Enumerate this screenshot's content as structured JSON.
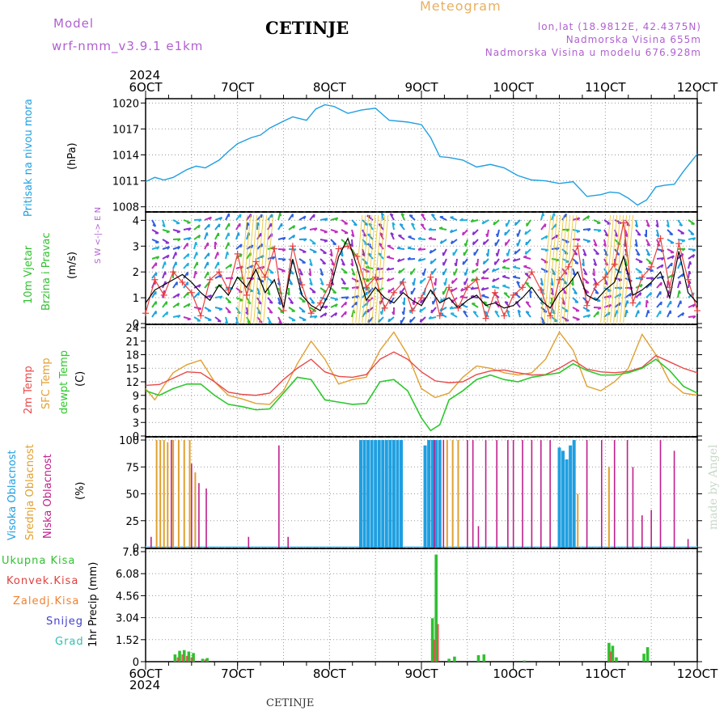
{
  "header": {
    "model_label": "Model",
    "model_name": "wrf-nmm_v3.9.1 e1km",
    "station": "CETINJE",
    "meteogram": "Meteogram",
    "lonlat": "lon,lat (18.9812E, 42.4375N)",
    "altitude": "Nadmorska Visina 655m",
    "model_altitude": "Nadmorska Visina u modelu 676.928m",
    "year": "2024",
    "footer_station": "CETINJE",
    "credit": "made by Angel"
  },
  "colors": {
    "pressure": "#1f9fe0",
    "wind_speed": "#000000",
    "wind_gust": "#e84040",
    "temp2m": "#e84a4a",
    "sfc_temp": "#e0a030",
    "dewpoint": "#2ec82e",
    "high_cloud": "#1f9fe0",
    "mid_cloud": "#e0a030",
    "low_cloud": "#c0208c",
    "total_precip": "#30c030",
    "conv_precip": "#e04040",
    "frozen_precip": "#f08030",
    "snow": "#4040d0",
    "graupel": "#30c0b0",
    "model_text": "#b060d0",
    "meteogram_text": "#e8b060"
  },
  "chart_data": [
    {
      "type": "line",
      "panel": "pressure",
      "title": "Pritisak na nivou mora",
      "ylabel": "(hPa)",
      "ylim": [
        1007.5,
        1020.5
      ],
      "yticks": [
        1008,
        1011,
        1014,
        1017,
        1020
      ],
      "x_ticks": [
        "6OCT",
        "7OCT",
        "8OCT",
        "9OCT",
        "10OCT",
        "11OCT",
        "12OCT"
      ],
      "x_range_days": [
        0,
        6
      ],
      "grid": true,
      "series": [
        {
          "name": "Pritisak na nivou mora",
          "x": [
            0,
            0.1,
            0.2,
            0.3,
            0.45,
            0.55,
            0.65,
            0.8,
            0.9,
            1.0,
            1.15,
            1.25,
            1.35,
            1.5,
            1.6,
            1.75,
            1.85,
            1.95,
            2.05,
            2.2,
            2.35,
            2.5,
            2.65,
            2.85,
            3.0,
            3.1,
            3.2,
            3.3,
            3.45,
            3.6,
            3.75,
            3.9,
            4.05,
            4.2,
            4.35,
            4.5,
            4.65,
            4.8,
            4.95,
            5.05,
            5.15,
            5.25,
            5.35,
            5.45,
            5.55,
            5.65,
            5.75,
            5.85,
            6.0
          ],
          "y": [
            1010.9,
            1011.4,
            1011.1,
            1011.4,
            1012.3,
            1012.7,
            1012.5,
            1013.4,
            1014.4,
            1015.3,
            1016.0,
            1016.3,
            1017.1,
            1017.9,
            1018.4,
            1018.0,
            1019.3,
            1019.8,
            1019.6,
            1018.8,
            1019.2,
            1019.4,
            1018.0,
            1017.8,
            1017.5,
            1016.0,
            1013.8,
            1013.7,
            1013.4,
            1012.6,
            1012.9,
            1012.5,
            1011.6,
            1011.1,
            1011.0,
            1010.7,
            1010.9,
            1009.2,
            1009.4,
            1009.7,
            1009.6,
            1009.0,
            1008.2,
            1008.8,
            1010.3,
            1010.5,
            1010.6,
            1012.1,
            1014.1
          ]
        }
      ]
    },
    {
      "type": "line",
      "panel": "wind",
      "title": "10m Vjetar",
      "subtitle": "Brzina i Pravac",
      "ylabel": "(m/s)",
      "compass": "S W <-|-> E N",
      "ylim": [
        0,
        4.2
      ],
      "yticks": [
        0,
        1,
        2,
        3,
        4
      ],
      "grid": true,
      "series": [
        {
          "name": "Brzina",
          "x": [
            0,
            0.1,
            0.2,
            0.3,
            0.4,
            0.5,
            0.6,
            0.7,
            0.8,
            0.9,
            1.0,
            1.1,
            1.2,
            1.3,
            1.4,
            1.5,
            1.6,
            1.7,
            1.8,
            1.9,
            2.0,
            2.1,
            2.2,
            2.3,
            2.4,
            2.5,
            2.6,
            2.7,
            2.8,
            2.9,
            3.0,
            3.1,
            3.2,
            3.3,
            3.4,
            3.5,
            3.6,
            3.7,
            3.8,
            3.9,
            4.0,
            4.1,
            4.2,
            4.3,
            4.4,
            4.5,
            4.6,
            4.7,
            4.8,
            4.9,
            5.0,
            5.1,
            5.2,
            5.3,
            5.4,
            5.5,
            5.6,
            5.7,
            5.8,
            5.9,
            6.0
          ],
          "y": [
            0.8,
            1.3,
            1.5,
            1.7,
            1.9,
            1.6,
            1.2,
            0.9,
            1.5,
            1.1,
            1.8,
            1.4,
            2.1,
            1.2,
            1.7,
            0.6,
            2.5,
            1.1,
            0.7,
            0.5,
            1.2,
            2.6,
            3.3,
            2.2,
            0.9,
            1.4,
            1.0,
            0.8,
            1.2,
            0.9,
            0.7,
            1.3,
            0.8,
            1.0,
            0.6,
            0.9,
            1.1,
            0.7,
            0.8,
            0.6,
            0.7,
            1.0,
            1.4,
            0.9,
            0.6,
            1.2,
            1.5,
            2.0,
            1.1,
            0.9,
            1.3,
            1.6,
            2.6,
            1.1,
            1.3,
            1.6,
            2.0,
            1.0,
            2.8,
            1.2,
            0.8
          ]
        },
        {
          "name": "Udar",
          "x": [
            0,
            0.1,
            0.2,
            0.3,
            0.4,
            0.5,
            0.6,
            0.7,
            0.8,
            0.9,
            1.0,
            1.1,
            1.2,
            1.3,
            1.4,
            1.5,
            1.6,
            1.7,
            1.8,
            1.9,
            2.0,
            2.1,
            2.2,
            2.3,
            2.4,
            2.5,
            2.6,
            2.7,
            2.8,
            2.9,
            3.0,
            3.1,
            3.2,
            3.3,
            3.4,
            3.5,
            3.6,
            3.7,
            3.8,
            3.9,
            4.0,
            4.1,
            4.2,
            4.3,
            4.4,
            4.5,
            4.6,
            4.7,
            4.8,
            4.9,
            5.0,
            5.1,
            5.2,
            5.3,
            5.4,
            5.5,
            5.6,
            5.7,
            5.8,
            5.9,
            6.0
          ],
          "y": [
            0.4,
            1.7,
            1.1,
            2.0,
            1.6,
            1.2,
            0.3,
            1.7,
            2.0,
            1.3,
            2.7,
            1.1,
            2.4,
            1.8,
            2.9,
            0.5,
            3.0,
            1.5,
            0.4,
            0.8,
            1.5,
            2.9,
            3.0,
            2.6,
            1.4,
            1.8,
            0.6,
            1.2,
            1.6,
            0.5,
            1.0,
            1.8,
            0.3,
            1.4,
            0.6,
            1.4,
            1.7,
            0.2,
            1.2,
            0.3,
            1.1,
            1.4,
            2.0,
            1.3,
            0.3,
            1.7,
            2.2,
            3.0,
            0.7,
            1.5,
            1.8,
            2.3,
            3.9,
            0.8,
            1.8,
            2.2,
            3.3,
            1.4,
            3.1,
            1.7,
            0.5
          ]
        }
      ]
    },
    {
      "type": "line",
      "panel": "temperature",
      "title": "2m Temp",
      "subtitle": "SFC Temp",
      "subtitle2": "dewpt Temp",
      "ylabel": "(C)",
      "ylim": [
        0,
        24
      ],
      "yticks": [
        0,
        3,
        6,
        9,
        12,
        15,
        18,
        21,
        24
      ],
      "grid": true,
      "series": [
        {
          "name": "2m Temp",
          "x": [
            0,
            0.15,
            0.3,
            0.45,
            0.6,
            0.75,
            0.9,
            1.05,
            1.2,
            1.35,
            1.5,
            1.65,
            1.8,
            1.95,
            2.1,
            2.25,
            2.4,
            2.55,
            2.7,
            2.85,
            3.0,
            3.15,
            3.3,
            3.45,
            3.6,
            3.75,
            3.9,
            4.05,
            4.2,
            4.35,
            4.5,
            4.65,
            4.8,
            4.95,
            5.1,
            5.25,
            5.4,
            5.55,
            5.7,
            5.85,
            6.0
          ],
          "y": [
            11.2,
            11.4,
            12.8,
            14.2,
            14.0,
            12.0,
            9.7,
            9.2,
            9.0,
            9.5,
            12.5,
            15.0,
            17.0,
            14.2,
            13.2,
            13.0,
            13.6,
            17.0,
            18.6,
            17.0,
            14.2,
            12.2,
            11.8,
            12.0,
            13.6,
            14.4,
            14.6,
            14.0,
            13.5,
            13.6,
            15.0,
            16.8,
            14.8,
            14.2,
            14.0,
            14.3,
            15.2,
            17.8,
            16.4,
            15.0,
            14.0
          ]
        },
        {
          "name": "SFC Temp",
          "x": [
            0,
            0.1,
            0.2,
            0.3,
            0.45,
            0.6,
            0.75,
            0.9,
            1.05,
            1.2,
            1.35,
            1.5,
            1.65,
            1.8,
            1.95,
            2.1,
            2.25,
            2.4,
            2.55,
            2.7,
            2.85,
            3.0,
            3.15,
            3.3,
            3.45,
            3.6,
            3.75,
            3.9,
            4.05,
            4.2,
            4.35,
            4.5,
            4.65,
            4.8,
            4.95,
            5.1,
            5.25,
            5.4,
            5.55,
            5.7,
            5.85,
            6.0
          ],
          "y": [
            10.5,
            8.0,
            11.2,
            14.0,
            15.8,
            16.8,
            12.0,
            9.0,
            8.2,
            7.2,
            7.0,
            10.0,
            16.0,
            21.0,
            17.0,
            11.5,
            12.5,
            13.0,
            19.0,
            23.0,
            18.0,
            10.5,
            8.5,
            9.5,
            13.0,
            15.5,
            15.0,
            14.0,
            13.5,
            14.0,
            17.0,
            23.0,
            19.0,
            11.0,
            10.0,
            12.0,
            15.0,
            22.5,
            18.0,
            12.0,
            9.5,
            9.0
          ]
        },
        {
          "name": "dewpt Temp",
          "x": [
            0,
            0.15,
            0.3,
            0.45,
            0.6,
            0.75,
            0.9,
            1.05,
            1.2,
            1.35,
            1.5,
            1.65,
            1.8,
            1.95,
            2.1,
            2.25,
            2.4,
            2.55,
            2.7,
            2.85,
            3.0,
            3.1,
            3.2,
            3.3,
            3.45,
            3.6,
            3.75,
            3.9,
            4.05,
            4.2,
            4.35,
            4.5,
            4.65,
            4.8,
            4.95,
            5.1,
            5.25,
            5.4,
            5.55,
            5.7,
            5.85,
            6.0
          ],
          "y": [
            10.0,
            9.0,
            10.5,
            11.5,
            11.5,
            9.0,
            7.0,
            6.5,
            5.8,
            6.0,
            9.5,
            13.0,
            12.5,
            8.0,
            7.5,
            7.0,
            7.2,
            12.0,
            12.5,
            10.0,
            4.0,
            1.2,
            2.5,
            8.0,
            10.0,
            12.5,
            13.5,
            12.5,
            12.0,
            13.0,
            13.5,
            14.0,
            16.0,
            14.5,
            13.5,
            13.5,
            14.0,
            15.0,
            17.0,
            14.5,
            11.0,
            9.5
          ]
        }
      ]
    },
    {
      "type": "bar",
      "panel": "clouds",
      "title": "Visoka Oblacnost",
      "subtitle": "Srednja Oblacnost",
      "subtitle2": "Niska Oblacnost",
      "ylabel": "(%)",
      "ylim": [
        0,
        100
      ],
      "yticks": [
        0,
        25,
        50,
        75,
        100
      ],
      "grid": true,
      "series": [
        {
          "name": "Visoka Oblacnost",
          "x": [
            2.34,
            2.38,
            2.42,
            2.46,
            2.5,
            2.54,
            2.58,
            2.62,
            2.66,
            2.7,
            2.74,
            2.78,
            3.04,
            3.08,
            3.12,
            3.16,
            3.2,
            4.5,
            4.54,
            4.58,
            4.62,
            4.66
          ],
          "y": [
            100,
            100,
            100,
            100,
            100,
            100,
            100,
            100,
            100,
            100,
            100,
            100,
            95,
            100,
            100,
            100,
            100,
            93,
            90,
            82,
            95,
            100
          ]
        },
        {
          "name": "Srednja Oblacnost",
          "x": [
            0.12,
            0.16,
            0.2,
            0.24,
            0.3,
            0.36,
            0.42,
            0.48,
            0.54,
            3.28,
            3.34,
            3.4,
            4.7,
            5.04
          ],
          "y": [
            100,
            100,
            100,
            98,
            100,
            100,
            100,
            100,
            70,
            100,
            100,
            100,
            50,
            75
          ]
        },
        {
          "name": "Niska Oblacnost",
          "x": [
            0.06,
            0.28,
            0.5,
            0.58,
            0.66,
            1.12,
            1.45,
            1.55,
            3.14,
            3.24,
            3.5,
            3.56,
            3.62,
            3.7,
            3.82,
            3.94,
            4.0,
            4.1,
            4.2,
            4.3,
            4.4,
            4.8,
            4.96,
            5.1,
            5.24,
            5.3,
            5.4,
            5.5,
            5.6,
            5.75,
            5.9
          ],
          "y": [
            10,
            100,
            78,
            60,
            55,
            10,
            95,
            10,
            100,
            100,
            100,
            100,
            20,
            100,
            100,
            100,
            100,
            100,
            100,
            100,
            100,
            100,
            100,
            100,
            100,
            75,
            30,
            35,
            100,
            90,
            8
          ]
        }
      ]
    },
    {
      "type": "bar",
      "panel": "precipitation",
      "title": "Ukupna Kisa",
      "subtitle": "Konvek.Kisa",
      "subtitle2": "Zaledj.Kisa",
      "subtitle3": "Snijeg",
      "subtitle4": "Grad",
      "ylabel": "1hr Precip (mm)",
      "ylim": [
        0,
        7.6
      ],
      "yticks": [
        0,
        1.52,
        3.04,
        4.56,
        6.08,
        7.6
      ],
      "x_ticks": [
        "6OCT",
        "7OCT",
        "8OCT",
        "9OCT",
        "10OCT",
        "11OCT",
        "12OCT"
      ],
      "grid": true,
      "series": [
        {
          "name": "Ukupna Kisa",
          "x": [
            0.32,
            0.37,
            0.42,
            0.47,
            0.52,
            0.62,
            0.67,
            3.12,
            3.16,
            3.3,
            3.36,
            3.62,
            3.68,
            4.12,
            5.04,
            5.08,
            5.12,
            5.42,
            5.46
          ],
          "y": [
            0.5,
            0.75,
            0.8,
            0.7,
            0.6,
            0.2,
            0.25,
            3.0,
            7.4,
            0.2,
            0.35,
            0.45,
            0.5,
            0.08,
            1.3,
            1.1,
            0.3,
            0.55,
            1.0
          ]
        },
        {
          "name": "Konvek.Kisa",
          "x": [
            0.35,
            0.4,
            0.45,
            0.5,
            0.65,
            3.14,
            3.18,
            5.06
          ],
          "y": [
            0.3,
            0.5,
            0.4,
            0.3,
            0.15,
            1.5,
            2.6,
            0.7
          ]
        }
      ]
    }
  ]
}
